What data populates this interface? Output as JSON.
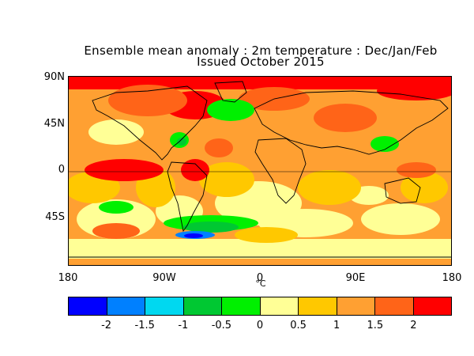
{
  "title": "Ensemble mean anomaly : 2m temperature : Dec/Jan/Feb",
  "subtitle": "Issued October 2015",
  "lat_labels": [
    "90N",
    "45N",
    "0",
    "45S"
  ],
  "lon_labels": [
    "180",
    "90W",
    "0",
    "90E",
    "180"
  ],
  "unit_label": "°C",
  "colorbar": {
    "colors": [
      "#0000ff",
      "#0080ff",
      "#00d8f0",
      "#00c832",
      "#00f000",
      "#ffff96",
      "#ffc800",
      "#ffa032",
      "#ff6418",
      "#ff0000"
    ],
    "labels": [
      "-2",
      "-1.5",
      "-1",
      "-0.5",
      "0",
      "0.5",
      "1",
      "1.5",
      "2"
    ]
  },
  "map": {
    "ocean_base_color": "#ffa032",
    "land_outline_color": "#000000"
  }
}
